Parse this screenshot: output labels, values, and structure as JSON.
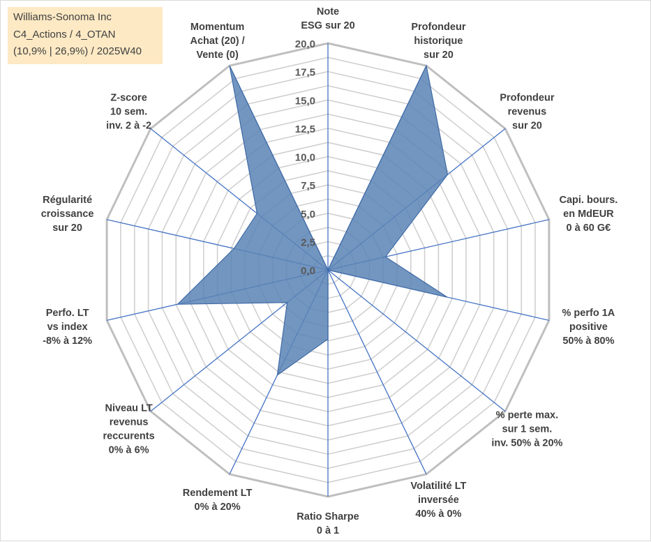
{
  "header": {
    "line1": "Williams-Sonoma Inc",
    "line2": "C4_Actions / 4_OTAN",
    "line3": "(10,9% | 26,9%) / 2025W40"
  },
  "colors": {
    "grid": "#bfbfbf",
    "spoke": "#4472c4",
    "fill": "#5b84b5",
    "label_box": "#fde9c4",
    "text": "#404040"
  },
  "chart_data": {
    "type": "radar",
    "title": "",
    "rlim": [
      0,
      20
    ],
    "ticks": [
      "0,0",
      "2,5",
      "5,0",
      "7,5",
      "10,0",
      "12,5",
      "15,0",
      "17,5",
      "20,0"
    ],
    "tick_values": [
      0,
      2.5,
      5,
      7.5,
      10,
      12.5,
      15,
      17.5,
      20
    ],
    "grid_circles": 16,
    "categories": [
      {
        "label": [
          "Note",
          "ESG sur 20"
        ],
        "value": 0
      },
      {
        "label": [
          "Profondeur",
          "historique",
          "sur 20"
        ],
        "value": 20
      },
      {
        "label": [
          "Profondeur",
          "revenus",
          "sur 20"
        ],
        "value": 13.5
      },
      {
        "label": [
          "Capi. bours.",
          "en MdEUR",
          "0 à 60 G€"
        ],
        "value": 5.2
      },
      {
        "label": [
          "% perfo 1A",
          "positive",
          "50% à 80%"
        ],
        "value": 10.8
      },
      {
        "label": [
          "% perte max.",
          "sur 1 sem.",
          "inv. 50% à 20%"
        ],
        "value": 0
      },
      {
        "label": [
          "Volatilité LT",
          "inversée",
          "40% à 0%"
        ],
        "value": 0
      },
      {
        "label": [
          "Ratio Sharpe",
          "0 à 1"
        ],
        "value": 6.1
      },
      {
        "label": [
          "Rendement LT",
          "0% à 20%"
        ],
        "value": 10.3
      },
      {
        "label": [
          "Niveau LT",
          "revenus",
          "reccurents",
          "0% à 6%"
        ],
        "value": 4.6
      },
      {
        "label": [
          "Perfo. LT",
          "vs index",
          "-8% à 12%"
        ],
        "value": 13.6
      },
      {
        "label": [
          "Régularité",
          "croissance",
          "sur 20"
        ],
        "value": 8.5
      },
      {
        "label": [
          "Z-score",
          "10 sem.",
          "inv. 2 à -2"
        ],
        "value": 8.0
      },
      {
        "label": [
          "Momentum",
          "Achat (20) /",
          "Vente (0)"
        ],
        "value": 20
      }
    ]
  }
}
